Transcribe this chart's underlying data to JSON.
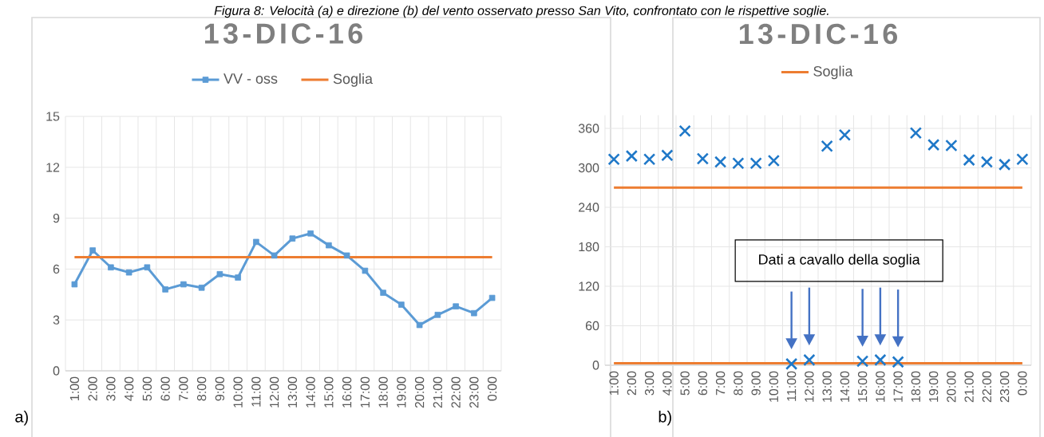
{
  "chart_data": [
    {
      "type": "line",
      "title": "13-DIC-16",
      "categories": [
        "1:00",
        "2:00",
        "3:00",
        "4:00",
        "5:00",
        "6:00",
        "7:00",
        "8:00",
        "9:00",
        "10:00",
        "11:00",
        "12:00",
        "13:00",
        "14:00",
        "15:00",
        "16:00",
        "17:00",
        "18:00",
        "19:00",
        "20:00",
        "21:00",
        "22:00",
        "23:00",
        "0:00"
      ],
      "series": [
        {
          "name": "VV - oss",
          "color": "#5b9bd5",
          "marker": "square",
          "values": [
            5.1,
            7.1,
            6.1,
            5.8,
            6.1,
            4.8,
            5.1,
            4.9,
            5.7,
            5.5,
            7.6,
            6.8,
            7.8,
            8.1,
            7.4,
            6.8,
            5.9,
            4.6,
            3.9,
            2.7,
            3.3,
            3.8,
            3.4,
            4.3
          ]
        },
        {
          "name": "Soglia",
          "color": "#ed7d31",
          "marker": "none",
          "values": [
            6.7,
            6.7,
            6.7,
            6.7,
            6.7,
            6.7,
            6.7,
            6.7,
            6.7,
            6.7,
            6.7,
            6.7,
            6.7,
            6.7,
            6.7,
            6.7,
            6.7,
            6.7,
            6.7,
            6.7,
            6.7,
            6.7,
            6.7,
            6.7
          ]
        }
      ],
      "ylim": [
        0,
        15
      ],
      "yticks": [
        0,
        3,
        6,
        9,
        12,
        15
      ],
      "grid": true,
      "legend": "top",
      "annotations": [
        "Figura 8: Velocità (a) e direzione (b) del vento osservato presso San Vito, confrontato con le rispettive soglie.",
        "a)"
      ]
    },
    {
      "type": "scatter",
      "title": "13-DIC-16",
      "categories": [
        "1:00",
        "2:00",
        "3:00",
        "4:00",
        "5:00",
        "6:00",
        "7:00",
        "8:00",
        "9:00",
        "10:00",
        "11:00",
        "12:00",
        "13:00",
        "14:00",
        "15:00",
        "16:00",
        "17:00",
        "18:00",
        "19:00",
        "20:00",
        "21:00",
        "22:00",
        "23:00",
        "0:00"
      ],
      "series": [
        {
          "color": "#1f78c8",
          "marker": "cross",
          "values": [
            313,
            318,
            313,
            319,
            356,
            314,
            309,
            307,
            307,
            311,
            2,
            8,
            333,
            350,
            6,
            8,
            5,
            353,
            335,
            334,
            312,
            309,
            305,
            313
          ]
        },
        {
          "type": "line",
          "name": "Soglia",
          "color": "#ed7d31",
          "marker": "none",
          "values": [
            270,
            270,
            270,
            270,
            270,
            270,
            270,
            270,
            270,
            270,
            270,
            270,
            270,
            270,
            270,
            270,
            270,
            270,
            270,
            270,
            270,
            270,
            270,
            270
          ]
        },
        {
          "type": "line",
          "color": "#ed7d31",
          "marker": "none",
          "values": [
            3,
            3,
            3,
            3,
            3,
            3,
            3,
            3,
            3,
            3,
            3,
            3,
            3,
            3,
            3,
            3,
            3,
            3,
            3,
            3,
            3,
            3,
            3,
            3
          ]
        }
      ],
      "ylim": [
        0,
        380
      ],
      "yticks": [
        0,
        60,
        120,
        180,
        240,
        300,
        360
      ],
      "grid": true,
      "legend": "top",
      "annotations": [
        "Dati a cavallo della soglia",
        "b)"
      ]
    }
  ]
}
